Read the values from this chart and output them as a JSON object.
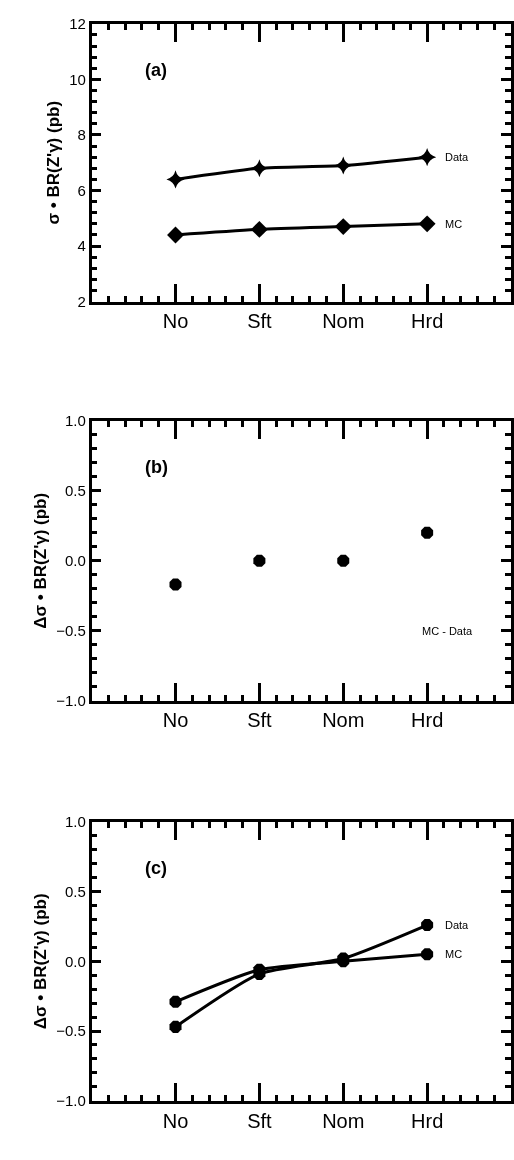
{
  "chart_data": [
    {
      "type": "line",
      "categories": [
        "No",
        "Sft",
        "Nom",
        "Hrd"
      ],
      "ylabel": "σ • BR(Z'γ) (pb)",
      "ylim": [
        2,
        12
      ],
      "yticks": [
        2,
        4,
        6,
        8,
        10,
        12
      ],
      "line_style": "solid",
      "annotations": [
        "(a)"
      ],
      "series": [
        {
          "name": "Data",
          "color": "#000000",
          "marker": "cross",
          "values": [
            6.4,
            6.8,
            6.9,
            7.2
          ]
        },
        {
          "name": "MC",
          "color": "#000000",
          "marker": "diamond",
          "values": [
            4.4,
            4.6,
            4.7,
            4.8
          ]
        }
      ]
    },
    {
      "type": "scatter",
      "categories": [
        "No",
        "Sft",
        "Nom",
        "Hrd"
      ],
      "ylabel": "Δσ • BR(Z'γ) (pb)",
      "ylim": [
        -1.0,
        1.0
      ],
      "yticks": [
        {
          "value": -1.0,
          "label": "−1.0"
        },
        {
          "value": -0.5,
          "label": "−0.5"
        },
        {
          "value": 0.0,
          "label": "0.0"
        },
        {
          "value": 0.5,
          "label": "0.5"
        },
        {
          "value": 1.0,
          "label": "1.0"
        }
      ],
      "marker": "circle",
      "annotations": [
        "(b)",
        "MC - Data"
      ],
      "series": [
        {
          "color": "#000000",
          "values": [
            -0.17,
            0.0,
            0.0,
            0.2
          ]
        }
      ]
    },
    {
      "type": "line",
      "categories": [
        "No",
        "Sft",
        "Nom",
        "Hrd"
      ],
      "ylabel": "Δσ • BR(Z'γ) (pb)",
      "ylim": [
        -1.0,
        1.0
      ],
      "yticks": [
        {
          "value": -1.0,
          "label": "−1.0"
        },
        {
          "value": -0.5,
          "label": "−0.5"
        },
        {
          "value": 0.0,
          "label": "0.0"
        },
        {
          "value": 0.5,
          "label": "0.5"
        },
        {
          "value": 1.0,
          "label": "1.0"
        }
      ],
      "marker": "circle",
      "line_style": "solid",
      "annotations": [
        "(c)"
      ],
      "series": [
        {
          "name": "Data",
          "color": "#000000",
          "values": [
            -0.47,
            -0.09,
            0.02,
            0.26
          ]
        },
        {
          "name": "MC",
          "color": "#000000",
          "values": [
            -0.29,
            -0.06,
            0.0,
            0.05
          ]
        }
      ]
    }
  ]
}
